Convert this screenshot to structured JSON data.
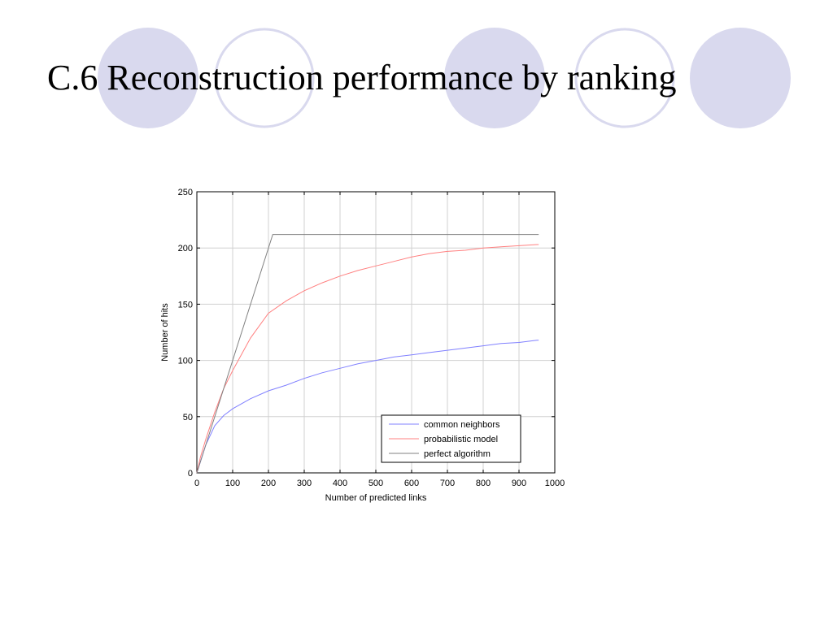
{
  "slide": {
    "title": "C.6 Reconstruction performance by ranking",
    "decor_fill": "#d9d9ee",
    "decor_stroke": "#d9d9ee",
    "decor_pattern": [
      "filled",
      "outline",
      "filled",
      "outline",
      "filled"
    ]
  },
  "chart_data": {
    "type": "line",
    "title": "",
    "xlabel": "Number of predicted links",
    "ylabel": "Number of hits",
    "xlim": [
      0,
      1000
    ],
    "ylim": [
      0,
      250
    ],
    "xticks": [
      0,
      100,
      200,
      300,
      400,
      500,
      600,
      700,
      800,
      900,
      1000
    ],
    "yticks": [
      0,
      50,
      100,
      150,
      200,
      250
    ],
    "grid": true,
    "legend_position": "bottom-right",
    "series": [
      {
        "name": "common neighbors",
        "color": "#8080ff",
        "x": [
          0,
          10,
          25,
          50,
          75,
          100,
          150,
          200,
          250,
          300,
          350,
          400,
          450,
          500,
          550,
          600,
          650,
          700,
          750,
          800,
          850,
          900,
          950,
          955
        ],
        "y": [
          0,
          10,
          25,
          42,
          51,
          57,
          66,
          73,
          78,
          84,
          89,
          93,
          97,
          100,
          103,
          105,
          107,
          109,
          111,
          113,
          115,
          116,
          118,
          118
        ]
      },
      {
        "name": "probabilistic model",
        "color": "#ff8080",
        "x": [
          0,
          10,
          25,
          50,
          75,
          100,
          150,
          200,
          250,
          300,
          350,
          400,
          450,
          500,
          550,
          600,
          650,
          700,
          750,
          800,
          850,
          900,
          950,
          955
        ],
        "y": [
          0,
          14,
          30,
          54,
          75,
          91,
          120,
          142,
          153,
          162,
          169,
          175,
          180,
          184,
          188,
          192,
          195,
          197,
          198,
          200,
          201,
          202,
          203,
          203
        ]
      },
      {
        "name": "perfect algorithm",
        "color": "#808080",
        "x": [
          0,
          212,
          955
        ],
        "y": [
          0,
          212,
          212
        ]
      }
    ]
  }
}
